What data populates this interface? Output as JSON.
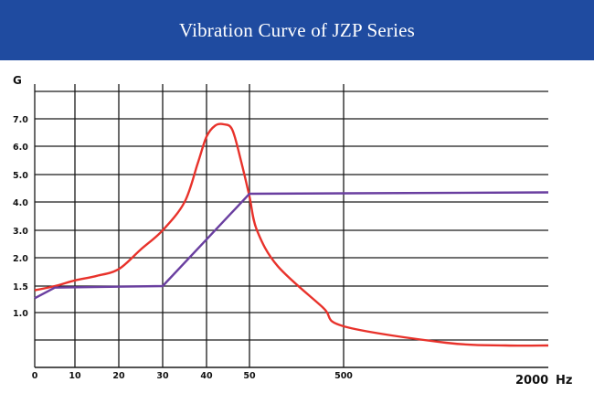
{
  "chart_data": {
    "type": "line",
    "title": "Vibration Curve of JZP Series",
    "ylabel": "G",
    "xlabel": "Hz",
    "x_end_label": "2000",
    "x_ticks": [
      "0",
      "10",
      "20",
      "30",
      "40",
      "50",
      "500"
    ],
    "y_ticks": [
      "1.0",
      "1.5",
      "2.0",
      "3.0",
      "4.0",
      "5.0",
      "6.0",
      "7.0"
    ],
    "grid": true,
    "series": [
      {
        "color": "#e8322b",
        "points": [
          [
            "0",
            1.42
          ],
          [
            "5",
            1.5
          ],
          [
            "10",
            1.6
          ],
          [
            "15",
            1.68
          ],
          [
            "20",
            1.8
          ],
          [
            "25",
            2.3
          ],
          [
            "30",
            3.0
          ],
          [
            "35",
            4.0
          ],
          [
            "38",
            5.4
          ],
          [
            "40",
            6.35
          ],
          [
            "42",
            6.75
          ],
          [
            "44",
            6.8
          ],
          [
            "46",
            6.6
          ],
          [
            "48",
            5.5
          ],
          [
            "50",
            4.2
          ],
          [
            "60",
            3.0
          ],
          [
            "100",
            1.85
          ],
          [
            "300",
            1.1
          ],
          [
            "500",
            0.75
          ],
          [
            "1000",
            0.45
          ],
          [
            "1500",
            0.4
          ],
          [
            "2000",
            0.4
          ]
        ]
      },
      {
        "color": "#6a3fa0",
        "points": [
          [
            "0",
            1.27
          ],
          [
            "5",
            1.47
          ],
          [
            "30",
            1.5
          ],
          [
            "50",
            4.3
          ],
          [
            "2000",
            4.35
          ]
        ]
      }
    ]
  }
}
